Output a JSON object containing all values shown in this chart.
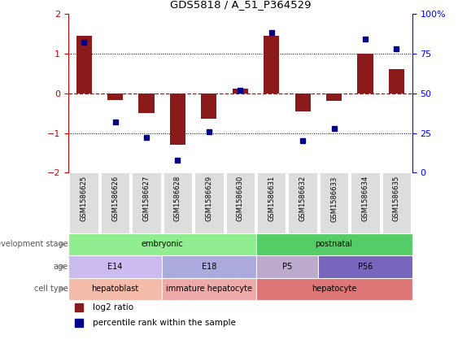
{
  "title": "GDS5818 / A_51_P364529",
  "samples": [
    "GSM1586625",
    "GSM1586626",
    "GSM1586627",
    "GSM1586628",
    "GSM1586629",
    "GSM1586630",
    "GSM1586631",
    "GSM1586632",
    "GSM1586633",
    "GSM1586634",
    "GSM1586635"
  ],
  "log2_ratio": [
    1.45,
    -0.18,
    -0.5,
    -1.3,
    -0.65,
    0.12,
    1.45,
    -0.45,
    -0.2,
    1.0,
    0.6
  ],
  "percentile": [
    82,
    32,
    22,
    8,
    26,
    52,
    88,
    20,
    28,
    84,
    78
  ],
  "ylim": [
    -2.0,
    2.0
  ],
  "yticks_left": [
    -2,
    -1,
    0,
    1,
    2
  ],
  "yticks_right": [
    0,
    25,
    50,
    75,
    100
  ],
  "bar_color": "#8B1A1A",
  "dot_color": "#00008B",
  "hline0_color": "#CC0000",
  "hline_dot_color": "#000000",
  "dev_stage": [
    {
      "text": "embryonic",
      "start": 0,
      "end": 5,
      "color": "#90EE90"
    },
    {
      "text": "postnatal",
      "start": 6,
      "end": 10,
      "color": "#55CC66"
    }
  ],
  "age": [
    {
      "text": "E14",
      "start": 0,
      "end": 2,
      "color": "#CCBBEE"
    },
    {
      "text": "E18",
      "start": 3,
      "end": 5,
      "color": "#AAAADD"
    },
    {
      "text": "P5",
      "start": 6,
      "end": 7,
      "color": "#BBAACC"
    },
    {
      "text": "P56",
      "start": 8,
      "end": 10,
      "color": "#7766BB"
    }
  ],
  "cell_type": [
    {
      "text": "hepatoblast",
      "start": 0,
      "end": 2,
      "color": "#F4BBAA"
    },
    {
      "text": "immature hepatocyte",
      "start": 3,
      "end": 5,
      "color": "#EEAAAA"
    },
    {
      "text": "hepatocyte",
      "start": 6,
      "end": 10,
      "color": "#DD7777"
    }
  ],
  "row_labels": [
    "development stage",
    "age",
    "cell type"
  ],
  "legend": [
    {
      "color": "#8B1A1A",
      "text": "log2 ratio"
    },
    {
      "color": "#00008B",
      "text": "percentile rank within the sample"
    }
  ]
}
